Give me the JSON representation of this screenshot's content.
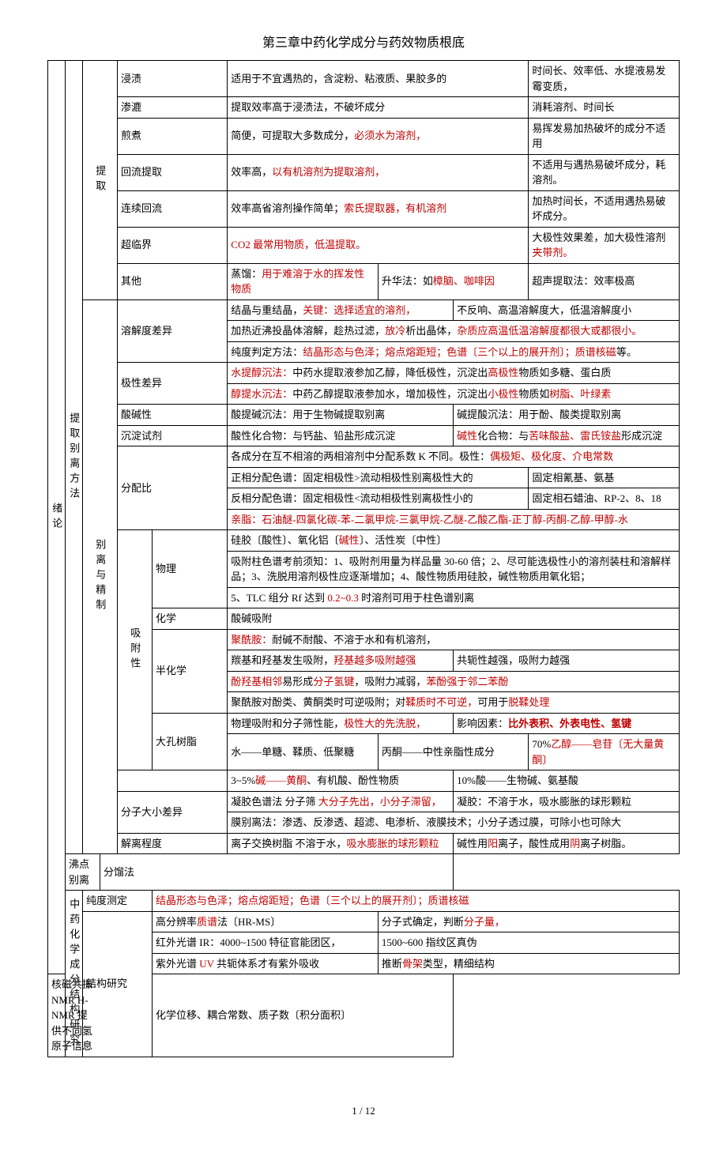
{
  "title": "第三章中药化学成分与药效物质根底",
  "footer": "1 / 12",
  "side": {
    "l1": "绪论",
    "l2a": "提取别离方法",
    "l2b": "中药化学成分结构研究",
    "l3a": "提取",
    "l3b": "别离与精制",
    "l4": "吸附性"
  },
  "ext": {
    "jinzi": {
      "m": "浸渍",
      "a": "适用于不宜遇热的，含淀粉、粘液质、果胶多的",
      "b": "时间长、效率低、水提液易发霉变质，"
    },
    "shenlu": {
      "m": "渗漉",
      "a": "提取效率高于浸渍法，不破坏成分",
      "b": "消耗溶剂、时间长"
    },
    "jianzhu": {
      "m": "煎煮",
      "a1": "简便，可提取大多数成分，",
      "a2": "必须水为溶剂，",
      "b": "易挥发易加热破坏的成分不适用"
    },
    "huiliu": {
      "m": "回流提取",
      "a1": "效率高，",
      "a2": "以有机溶剂为提取溶剂，",
      "b": "不适用与遇热易破坏成分，耗溶剂。"
    },
    "lianxu": {
      "m": "连续回流",
      "a1": "效率高省溶剂操作简单；",
      "a2": "索氏提取器，有机溶剂",
      "b": "加热时间长，不适用遇热易破坏成分。"
    },
    "chaolin": {
      "m": "超临界",
      "a1": "CO2 最常用物质，低温提取。",
      "b1": "大极性效果差，加大极性溶剂",
      "b2": "夹带剂。"
    },
    "qita": {
      "m": "其他",
      "a1": "蒸馏：",
      "a2": "用于难溶于水的挥发性物质",
      "b1": "升华法：如",
      "b2": "樟脑、咖啡因",
      "c": "超声提取法：效率极高"
    }
  },
  "sep": {
    "rjd": {
      "m": "溶解度差异",
      "r1a": "结晶与重结晶，",
      "r1b": "关键：选择适宜的溶剂，",
      "r1c": "不反响、高温溶解度大，低温溶解度小",
      "r2a": "加热近沸投晶体溶解，趁热过滤，",
      "r2b": "放冷",
      "r2c": "析出晶体，",
      "r2d": "杂质应高温低温溶解度都很大或都很小。",
      "r3a": "纯度判定方法：",
      "r3b": "结晶形态与色泽；熔点熔距短；色谱〔三个以上的展开剂〕；质谱核磁",
      "r3c": "等。"
    },
    "jixing": {
      "m": "极性差异",
      "r1a": "水提醇沉法：",
      "r1b": "中药水提取液参加乙醇，降低极性，沉淀出",
      "r1c": "高极性",
      "r1d": "物质如多糖、蛋白质",
      "r2a": "醇提水沉法：",
      "r2b": "中药乙醇提取液参加水，增加极性，沉淀出",
      "r2c": "小极性",
      "r2d": "物质如",
      "r2e": "树脂、叶绿素"
    },
    "suanjian": {
      "m": "酸碱性",
      "a": "酸提碱沉法：用于生物碱提取别离",
      "b": "碱提酸沉法：用于酚、酸类提取别离"
    },
    "chendian": {
      "m": "沉淀试剂",
      "a": "酸性化合物：与钙盐、铅盐形成沉淀",
      "b1": "碱性",
      "b2": "化合物：与",
      "b3": "苦味酸盐、雷氏铵盐",
      "b4": "形成沉淀"
    },
    "fenpei": {
      "m": "分配比",
      "r1a": "各成分在互不相溶的两相溶剂中分配系数 K 不同。极性：",
      "r1b": "偶极矩、极化度、介电常数",
      "r2a": "正相分配色谱：固定相极性>流动相极性别离极性大的",
      "r2b": "固定相氰基、氨基",
      "r3a": "反相分配色谱：固定相极性<流动相极性别离极性小的",
      "r3b": "固定相石蜡油、RP-2、8、18",
      "r4": "亲脂：石油醚-四氯化碳-苯-二氯甲烷-三氯甲烷-乙醚-乙酸乙酯-正丁醇-丙酮-乙醇-甲醇-水"
    },
    "wuli": {
      "m": "物理",
      "r1a": "硅胶〔酸性〕、氧化铝〔",
      "r1b": "碱性",
      "r1c": "〕、活性炭〔中性〕",
      "r2": "吸附柱色谱考前须知：1、吸附剂用量为样品量 30-60 倍；2、尽可能选极性小的溶剂装柱和溶解样品；3、洗脱用溶剂极性应逐渐增加；4、酸性物质用硅胶，碱性物质用氧化铝；",
      "r3a": "5、TLC 组分 Rf 达到 ",
      "r3b": "0.2~0.3 ",
      "r3c": "时溶剂可用于柱色谱别离"
    },
    "huaxue": {
      "m": "化学",
      "a": "酸碱吸附"
    },
    "banhua": {
      "m": "半化学",
      "r1a": "聚酰胺：",
      "r1b": "耐碱不耐酸、不溶于水和有机溶剂，",
      "r2a": "羰基和羟基发生吸附，",
      "r2b": "羟基越多吸附越强",
      "r2c": "共轭性越强，吸附力越强",
      "r3a": "酚羟基相邻",
      "r3b": "易形成",
      "r3c": "分子氢键",
      "r3d": "，吸附力减弱，",
      "r3e": "苯酚强于邻二苯酚",
      "r4a": "聚酰胺对酚类、黄酮类时可逆吸附；对",
      "r4b": "鞣质时不可逆，",
      "r4c": "可用于",
      "r4d": "脱鞣处理"
    },
    "dakong": {
      "m": "大孔树脂",
      "r1a": "物理吸附和分子筛性能，",
      "r1b": "极性大的先洗脱，",
      "r1c": "影响因素：",
      "r1d": "比外表积、外表电性、氢键",
      "r2a": "水——单糖、鞣质、低聚糖",
      "r2b": "丙酮——中性亲脂性成分",
      "r2c1": "70%",
      "r2c2": "乙醇——皂苷〔无大量黄酮〕",
      "r3a1": "3~5%",
      "r3a2": "碱——黄酮",
      "r3a3": "、有机酸、酚性物质",
      "r3b": "10%酸——生物碱、氨基酸"
    },
    "fenzi": {
      "m": "分子大小差异",
      "r1a": "凝胶色谱法 分子筛 ",
      "r1b": "大分子先出，小分子滞留，",
      "r1c": "凝胶：不溶于水，吸水膨胀的球形颗粒",
      "r2": "膜别离法：渗透、反渗透、超滤、电渗析、液膜技术；小分子透过膜，可除小也可除大"
    },
    "jieli": {
      "m": "解离程度",
      "a1": "离子交换树脂  不溶于水，",
      "a2": "吸水膨胀的球形颗粒",
      "b1": "碱性用",
      "b2": "阳",
      "b3": "离子，",
      "b4": "酸性成用",
      "b5": "阴",
      "b6": "离子树脂。"
    },
    "feidian": {
      "m": "沸点别离",
      "a": "分馏法"
    }
  },
  "res": {
    "chundu": {
      "m": "纯度测定",
      "a": "结晶形态与色泽；熔点熔距短；色谱〔三个以上的展开剂〕；质谱核磁"
    },
    "jiegou": {
      "m": "结构研究",
      "r1a": "高分辨率",
      "r1b": "质谱",
      "r1c": "法〔HR-MS〕",
      "r1d": "分子式确定，判断",
      "r1e": "分子量，",
      "r2a": "红外光谱 IR：4000~1500 特征官能团区，",
      "r2b": "1500~600 指纹区真伪",
      "r3a": "紫外光谱 ",
      "r3b": "UV ",
      "r3c": "共轭体系才有紫外吸收",
      "r3d": "推断",
      "r3e": "骨架",
      "r3f": "类型，精细结构",
      "r4a": "核磁共振 NMR   H-NMR 提供不同氢原子信息",
      "r4b": "化学位移、耦合常数、质子数〔积分面积〕"
    }
  }
}
